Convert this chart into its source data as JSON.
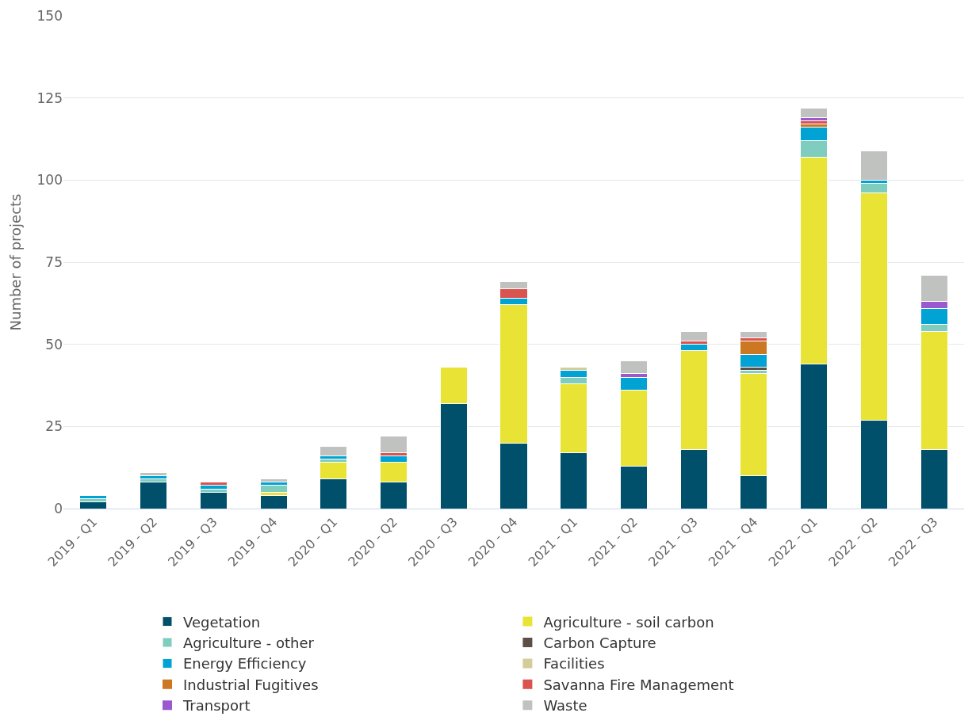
{
  "chart_data": {
    "type": "bar",
    "stacked": true,
    "ylabel": "Number of projects",
    "categories": [
      "2019 - Q1",
      "2019 - Q2",
      "2019 - Q3",
      "2019 - Q4",
      "2020 - Q1",
      "2020 - Q2",
      "2020 - Q3",
      "2020 - Q4",
      "2021 - Q1",
      "2021 - Q2",
      "2021 - Q3",
      "2021 - Q4",
      "2022 - Q1",
      "2022 - Q2",
      "2022 - Q3"
    ],
    "ylim": [
      0,
      150
    ],
    "yticks": [
      0,
      25,
      50,
      75,
      100,
      125,
      150
    ],
    "grid": "y",
    "legend": "bottom",
    "series": [
      {
        "name": "Vegetation",
        "color": "#00506b",
        "values": [
          2,
          8,
          5,
          4,
          9,
          8,
          32,
          20,
          17,
          13,
          18,
          10,
          44,
          27,
          18
        ]
      },
      {
        "name": "Agriculture - soil carbon",
        "color": "#e9e336",
        "values": [
          0,
          0,
          0,
          1,
          5,
          6,
          11,
          42,
          21,
          23,
          30,
          31,
          63,
          69,
          36
        ]
      },
      {
        "name": "Agriculture - other",
        "color": "#7fcdbf",
        "values": [
          1,
          1,
          1,
          2,
          1,
          0,
          0,
          0,
          2,
          0,
          0,
          1,
          5,
          3,
          2
        ]
      },
      {
        "name": "Carbon Capture",
        "color": "#5c4f46",
        "values": [
          0,
          0,
          0,
          0,
          0,
          0,
          0,
          0,
          0,
          0,
          0,
          1,
          0,
          0,
          0
        ]
      },
      {
        "name": "Energy Efficiency",
        "color": "#00a3d4",
        "values": [
          1,
          1,
          1,
          1,
          1,
          2,
          0,
          2,
          2,
          4,
          2,
          4,
          4,
          1,
          5
        ]
      },
      {
        "name": "Facilities",
        "color": "#d4cd9a",
        "values": [
          0,
          0,
          0,
          0,
          0,
          0,
          0,
          0,
          1,
          0,
          0,
          0,
          0,
          0,
          0
        ]
      },
      {
        "name": "Industrial Fugitives",
        "color": "#cc7722",
        "values": [
          0,
          0,
          0,
          0,
          0,
          0,
          0,
          0,
          0,
          0,
          0,
          4,
          1,
          0,
          0
        ]
      },
      {
        "name": "Savanna Fire Management",
        "color": "#d9534f",
        "values": [
          0,
          0,
          1,
          0,
          0,
          1,
          0,
          3,
          0,
          0,
          1,
          1,
          1,
          0,
          0
        ]
      },
      {
        "name": "Transport",
        "color": "#9b59d0",
        "values": [
          0,
          0,
          0,
          0,
          0,
          0,
          0,
          0,
          0,
          1,
          0,
          0,
          1,
          0,
          2
        ]
      },
      {
        "name": "Waste",
        "color": "#c0c2c0",
        "values": [
          0,
          1,
          0,
          1,
          3,
          5,
          0,
          2,
          0,
          4,
          3,
          2,
          3,
          9,
          8
        ]
      }
    ]
  }
}
